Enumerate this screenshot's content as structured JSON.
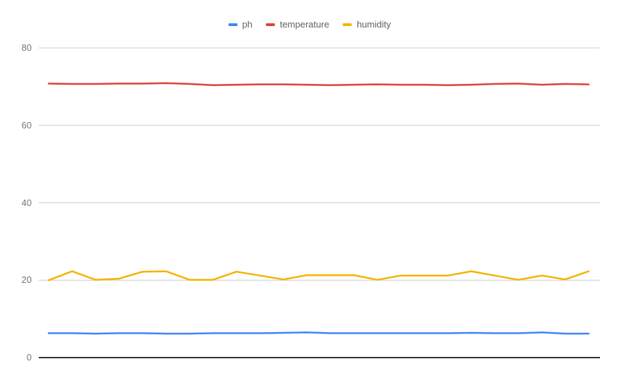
{
  "chart_data": {
    "type": "line",
    "title": "",
    "xlabel": "",
    "ylabel": "",
    "grid": true,
    "legend_position": "top-center",
    "ylim": [
      0,
      80
    ],
    "y_ticks": [
      0,
      20,
      40,
      60,
      80
    ],
    "y_tick_labels": [
      "0",
      "20",
      "40",
      "60",
      "80"
    ],
    "x_tick_labels": [],
    "gridline_color": "#cccccc",
    "baseline_color": "#333333",
    "axis_label_color": "#757575",
    "legend_text_color": "#616161",
    "background_color": "#ffffff",
    "series": [
      {
        "name": "ph",
        "color": "#4285F4",
        "values": [
          6.3,
          6.3,
          6.2,
          6.3,
          6.3,
          6.2,
          6.2,
          6.3,
          6.3,
          6.3,
          6.4,
          6.5,
          6.3,
          6.3,
          6.3,
          6.3,
          6.3,
          6.3,
          6.4,
          6.3,
          6.3,
          6.5,
          6.2,
          6.2
        ]
      },
      {
        "name": "temperature",
        "color": "#DB4437",
        "values": [
          70.8,
          70.7,
          70.7,
          70.8,
          70.8,
          70.9,
          70.7,
          70.4,
          70.5,
          70.6,
          70.6,
          70.5,
          70.4,
          70.5,
          70.6,
          70.5,
          70.5,
          70.4,
          70.5,
          70.7,
          70.8,
          70.5,
          70.7,
          70.6
        ]
      },
      {
        "name": "humidity",
        "color": "#F4B400",
        "values": [
          20.0,
          22.3,
          20.1,
          20.4,
          22.2,
          22.3,
          20.1,
          20.1,
          22.2,
          21.2,
          20.2,
          21.3,
          21.3,
          21.3,
          20.1,
          21.2,
          21.2,
          21.2,
          22.3,
          21.2,
          20.1,
          21.2,
          20.2,
          22.3
        ]
      }
    ]
  }
}
